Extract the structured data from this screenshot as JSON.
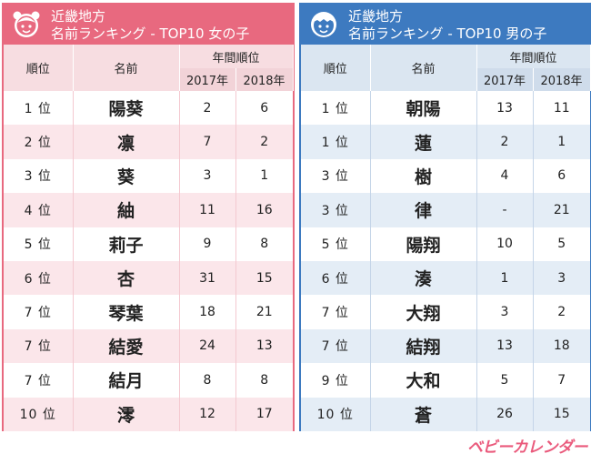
{
  "girls": {
    "title_line1": "近畿地方",
    "title_line2": "名前ランキング - TOP10 女の子",
    "icon": "girl-face-icon",
    "header": {
      "rank": "順位",
      "name": "名前",
      "yearly": "年間順位",
      "y2017": "2017年",
      "y2018": "2018年"
    },
    "rows": [
      {
        "rank": "1 位",
        "name": "陽葵",
        "r2017": "2",
        "r2018": "6"
      },
      {
        "rank": "2 位",
        "name": "凛",
        "r2017": "7",
        "r2018": "2"
      },
      {
        "rank": "3 位",
        "name": "葵",
        "r2017": "3",
        "r2018": "1"
      },
      {
        "rank": "4 位",
        "name": "紬",
        "r2017": "11",
        "r2018": "16"
      },
      {
        "rank": "5 位",
        "name": "莉子",
        "r2017": "9",
        "r2018": "8"
      },
      {
        "rank": "6 位",
        "name": "杏",
        "r2017": "31",
        "r2018": "15"
      },
      {
        "rank": "7 位",
        "name": "琴葉",
        "r2017": "18",
        "r2018": "21"
      },
      {
        "rank": "7 位",
        "name": "結愛",
        "r2017": "24",
        "r2018": "13"
      },
      {
        "rank": "7 位",
        "name": "結月",
        "r2017": "8",
        "r2018": "8"
      },
      {
        "rank": "10 位",
        "name": "澪",
        "r2017": "12",
        "r2018": "17"
      }
    ]
  },
  "boys": {
    "title_line1": "近畿地方",
    "title_line2": "名前ランキング - TOP10 男の子",
    "icon": "boy-face-icon",
    "header": {
      "rank": "順位",
      "name": "名前",
      "yearly": "年間順位",
      "y2017": "2017年",
      "y2018": "2018年"
    },
    "rows": [
      {
        "rank": "1 位",
        "name": "朝陽",
        "r2017": "13",
        "r2018": "11"
      },
      {
        "rank": "1 位",
        "name": "蓮",
        "r2017": "2",
        "r2018": "1"
      },
      {
        "rank": "3 位",
        "name": "樹",
        "r2017": "4",
        "r2018": "6"
      },
      {
        "rank": "3 位",
        "name": "律",
        "r2017": "-",
        "r2018": "21"
      },
      {
        "rank": "5 位",
        "name": "陽翔",
        "r2017": "10",
        "r2018": "5"
      },
      {
        "rank": "6 位",
        "name": "湊",
        "r2017": "1",
        "r2018": "3"
      },
      {
        "rank": "7 位",
        "name": "大翔",
        "r2017": "3",
        "r2018": "2"
      },
      {
        "rank": "7 位",
        "name": "結翔",
        "r2017": "13",
        "r2018": "18"
      },
      {
        "rank": "9 位",
        "name": "大和",
        "r2017": "5",
        "r2018": "7"
      },
      {
        "rank": "10 位",
        "name": "蒼",
        "r2017": "26",
        "r2018": "15"
      }
    ]
  },
  "brand": "ベビーカレンダー",
  "colors": {
    "girls_accent": "#e8697f",
    "boys_accent": "#3d7ac0",
    "brand": "#ea5a7c"
  }
}
